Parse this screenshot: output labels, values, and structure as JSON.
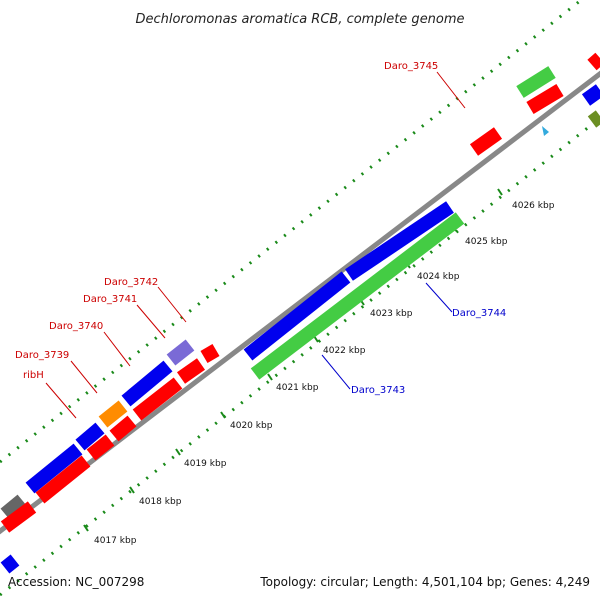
{
  "title": "Dechloromonas aromatica RCB, complete genome",
  "footer": {
    "accession": "Accession: NC_007298",
    "summary": "Topology: circular; Length: 4,501,104 bp; Genes: 4,249"
  },
  "scale_labels": [
    "4017 kbp",
    "4018 kbp",
    "4019 kbp",
    "4020 kbp",
    "4021 kbp",
    "4022 kbp",
    "4023 kbp",
    "4024 kbp",
    "4025 kbp",
    "4026 kbp"
  ],
  "gene_labels": {
    "red": [
      "ribH",
      "Daro_3739",
      "Daro_3740",
      "Daro_3741",
      "Daro_3742",
      "Daro_3745"
    ],
    "blue": [
      "Daro_3743",
      "Daro_3744"
    ]
  },
  "colors": {
    "cds_forward": "#0000ee",
    "cds_reverse": "#ff0000",
    "rna": "#44cc44",
    "orange": "#ff8c00",
    "purple": "#7a6ad6",
    "gray": "#666666",
    "olive": "#6b8e23",
    "backbone": "#888888",
    "tick": "#1a8a1a"
  }
}
